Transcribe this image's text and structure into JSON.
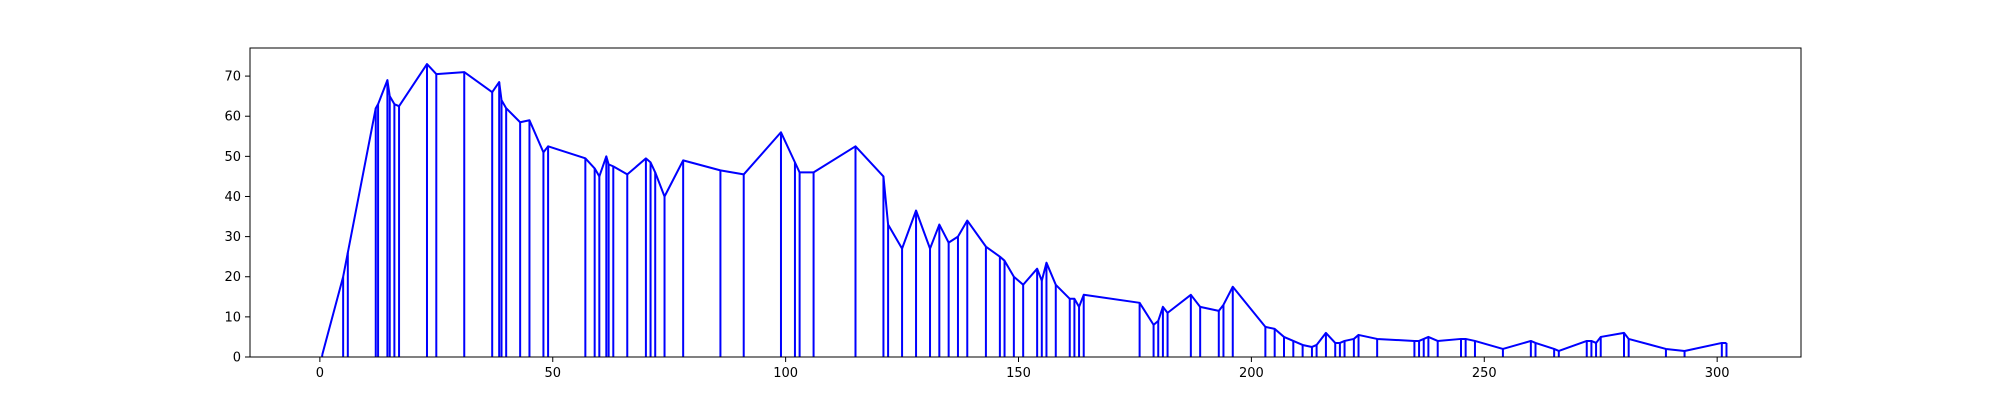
{
  "chart_data": {
    "type": "line",
    "title": "",
    "xlabel": "",
    "ylabel": "",
    "xlim": [
      -15,
      318
    ],
    "ylim": [
      0,
      77
    ],
    "grid": false,
    "legend": "none",
    "color": "#0000ff",
    "x_ticks": [
      0,
      50,
      100,
      150,
      200,
      250,
      300
    ],
    "y_ticks": [
      0,
      10,
      20,
      30,
      40,
      50,
      60,
      70
    ],
    "x_tick_labels": [
      "0",
      "50",
      "100",
      "150",
      "200",
      "250",
      "300"
    ],
    "y_tick_labels": [
      "0",
      "10",
      "20",
      "30",
      "40",
      "50",
      "60",
      "70"
    ],
    "series": [
      {
        "x": [
          0.5,
          5,
          6,
          12,
          12.5,
          14.5,
          15,
          16,
          17,
          23,
          25,
          31,
          37,
          38.5,
          39,
          40,
          43,
          45,
          48,
          49,
          57,
          59,
          60,
          61.5,
          62,
          63,
          66,
          70,
          71,
          72,
          74,
          78,
          86,
          91,
          99,
          102,
          103,
          106,
          115,
          121,
          122,
          125,
          128,
          131,
          133,
          135,
          137,
          139,
          143,
          146,
          147,
          149,
          151,
          154,
          155,
          156,
          158,
          161,
          162,
          163,
          164,
          176,
          179,
          180,
          181,
          182,
          187,
          189,
          193,
          194,
          196,
          203,
          205,
          207,
          209,
          211,
          213,
          214,
          216,
          218,
          219,
          220,
          222,
          223,
          227,
          235,
          236,
          237,
          238,
          240,
          245,
          246,
          248,
          254,
          260,
          261,
          265,
          266,
          272,
          273,
          274,
          275,
          280,
          281,
          289,
          293,
          301,
          302
        ],
        "y": [
          0.5,
          20,
          26,
          62,
          63,
          69,
          65,
          63,
          62.5,
          73,
          70.5,
          71,
          66,
          68.5,
          64,
          62,
          58.5,
          59,
          51,
          52.5,
          49.5,
          47,
          45,
          50,
          48,
          47.5,
          45.5,
          49.5,
          48.5,
          46,
          40,
          49,
          46.5,
          45.5,
          56,
          48.5,
          46,
          46,
          52.5,
          45,
          33,
          27,
          36.5,
          27,
          33,
          28.5,
          30,
          34,
          27.5,
          25,
          24,
          20,
          18,
          22,
          19,
          23.5,
          18,
          14.5,
          14.5,
          12.5,
          15.5,
          13.5,
          8,
          9,
          12.5,
          11,
          15.5,
          12.5,
          11.5,
          13,
          17.5,
          7.5,
          7,
          5,
          4,
          3,
          2.5,
          3,
          6,
          3.5,
          3.5,
          4,
          4.5,
          5.5,
          4.5,
          4,
          4,
          4.5,
          5,
          4,
          4.5,
          4.5,
          4,
          2,
          4,
          3.5,
          2,
          1.5,
          4,
          4,
          3.5,
          5,
          6,
          4.5,
          2,
          1.5,
          3.5,
          3.5
        ]
      }
    ]
  }
}
